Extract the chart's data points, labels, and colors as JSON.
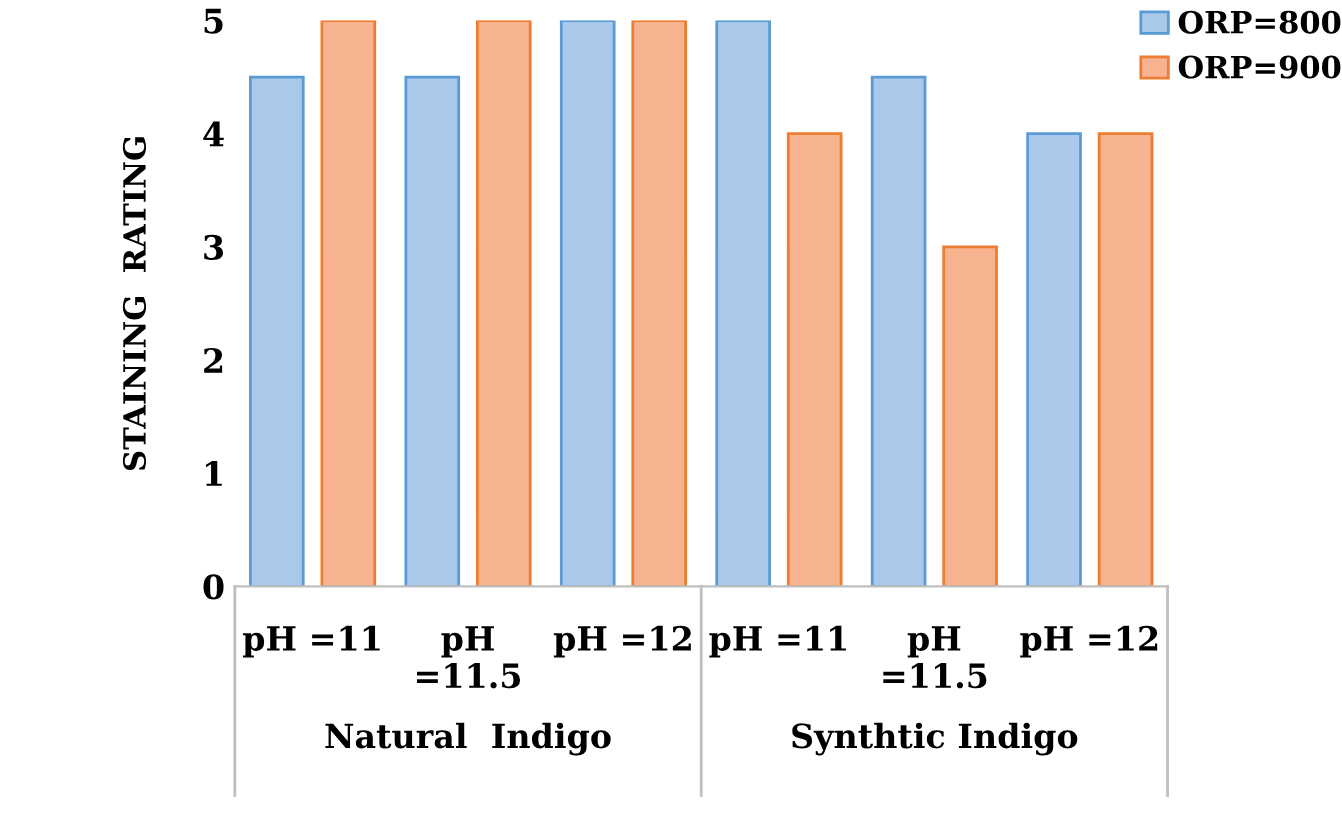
{
  "chart_data": {
    "type": "bar",
    "ylabel": "STAINING  RATING",
    "categories": [
      "pH =11",
      "pH\n=11.5",
      "pH =12",
      "pH =11",
      "pH\n=11.5",
      "pH =12"
    ],
    "series": [
      {
        "name": "ORP=800",
        "color": "#a9c8ea",
        "values": [
          4.5,
          4.5,
          5,
          5,
          4.5,
          4
        ]
      },
      {
        "name": "ORP=900",
        "color": "#f7b28f",
        "values": [
          5,
          5,
          5,
          4,
          3,
          4
        ]
      }
    ],
    "ylim": [
      0,
      5
    ],
    "yticks": [
      0,
      1,
      2,
      3,
      4,
      5
    ],
    "grid": false,
    "legend": "top right",
    "annotations": [
      "Natural  Indigo",
      "Synthtic Indigo"
    ]
  }
}
